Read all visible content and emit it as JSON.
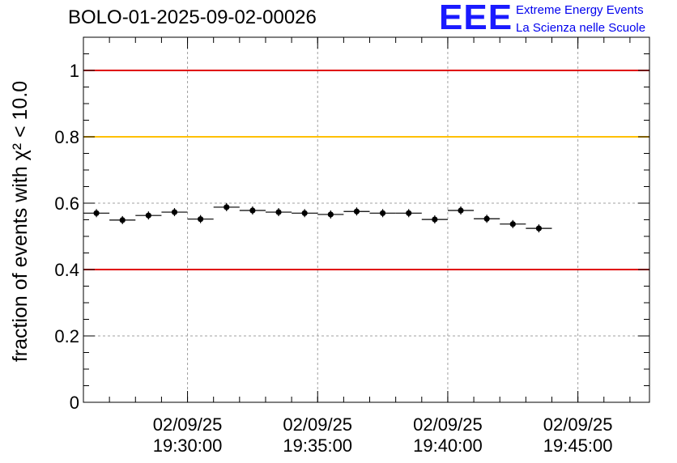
{
  "title": "BOLO-01-2025-09-02-00026",
  "logo": {
    "mark": "EEE",
    "line1": "Extreme Energy Events",
    "line2": "La Scienza nelle Scuole"
  },
  "colors": {
    "red_line": "#e00000",
    "yellow_line": "#ffc000",
    "logo_blue": "#1a1aff"
  },
  "chart_data": {
    "type": "scatter",
    "title": "BOLO-01-2025-09-02-00026",
    "xlabel": "",
    "ylabel": "fraction of events with χ² < 10.0",
    "ylim": [
      0,
      1.1
    ],
    "x_range": [
      "2025-09-02 19:26:00",
      "2025-09-02 19:47:45"
    ],
    "grid": true,
    "y_ticks": [
      "0",
      "0.2",
      "0.4",
      "0.6",
      "0.8",
      "1"
    ],
    "x_ticks": [
      {
        "date": "02/09/25",
        "time": "19:30:00"
      },
      {
        "date": "02/09/25",
        "time": "19:35:00"
      },
      {
        "date": "02/09/25",
        "time": "19:40:00"
      },
      {
        "date": "02/09/25",
        "time": "19:45:00"
      }
    ],
    "reference_lines": [
      {
        "y": 1.0,
        "color": "red"
      },
      {
        "y": 0.8,
        "color": "yellow"
      },
      {
        "y": 0.4,
        "color": "red"
      }
    ],
    "bin_width_seconds": 60,
    "points": [
      {
        "x": "2025-09-02 19:26:30",
        "y": 0.57
      },
      {
        "x": "2025-09-02 19:27:30",
        "y": 0.549
      },
      {
        "x": "2025-09-02 19:28:30",
        "y": 0.563
      },
      {
        "x": "2025-09-02 19:29:30",
        "y": 0.573
      },
      {
        "x": "2025-09-02 19:30:30",
        "y": 0.552
      },
      {
        "x": "2025-09-02 19:31:30",
        "y": 0.588
      },
      {
        "x": "2025-09-02 19:32:30",
        "y": 0.578
      },
      {
        "x": "2025-09-02 19:33:30",
        "y": 0.573
      },
      {
        "x": "2025-09-02 19:34:30",
        "y": 0.57
      },
      {
        "x": "2025-09-02 19:35:30",
        "y": 0.566
      },
      {
        "x": "2025-09-02 19:36:30",
        "y": 0.575
      },
      {
        "x": "2025-09-02 19:37:30",
        "y": 0.57
      },
      {
        "x": "2025-09-02 19:38:30",
        "y": 0.57
      },
      {
        "x": "2025-09-02 19:39:30",
        "y": 0.551
      },
      {
        "x": "2025-09-02 19:40:30",
        "y": 0.578
      },
      {
        "x": "2025-09-02 19:41:30",
        "y": 0.553
      },
      {
        "x": "2025-09-02 19:42:30",
        "y": 0.537
      },
      {
        "x": "2025-09-02 19:43:30",
        "y": 0.524
      }
    ]
  }
}
